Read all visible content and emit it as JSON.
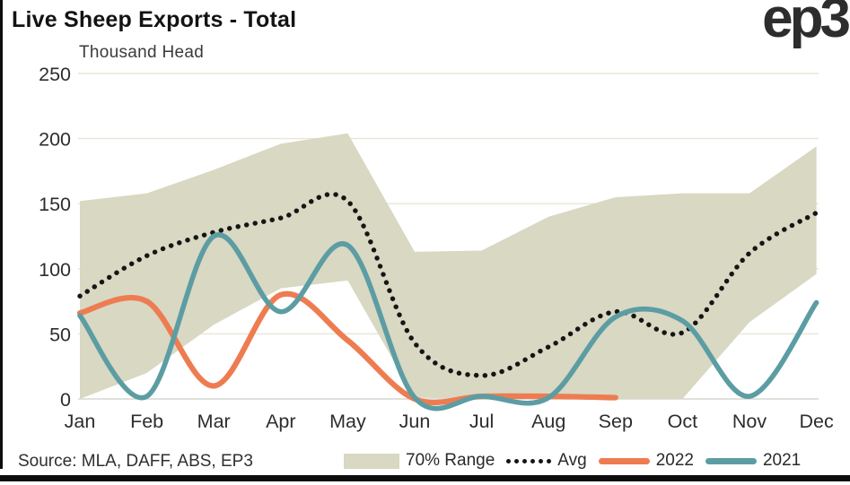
{
  "header": {
    "title": "Live Sheep Exports - Total",
    "logo": "ep3"
  },
  "chart": {
    "unit_label": "Thousand Head"
  },
  "footer": {
    "source": "Source: MLA, DAFF, ABS, EP3"
  },
  "legend": [
    {
      "label": "70% Range",
      "swatch": "band-swatch",
      "color": "#D8D8C3"
    },
    {
      "label": "Avg",
      "swatch": "dotted-swatch",
      "color": "#151515"
    },
    {
      "label": "2022",
      "swatch": "line-swatch",
      "color": "#EE7C51"
    },
    {
      "label": "2021",
      "swatch": "line-swatch",
      "color": "#5C9DA3"
    }
  ],
  "colors": {
    "band": "#D8D8C3",
    "avg": "#151515",
    "y2022": "#EE7C51",
    "y2021": "#5C9DA3",
    "gridline": "#e8e6d8",
    "axisline": "#d6d6d0",
    "tick_text": "#2d2d2d"
  },
  "chart_data": {
    "type": "line",
    "title": "Live Sheep Exports - Total",
    "ylabel": "Thousand Head",
    "xlabel": "",
    "categories": [
      "Jan",
      "Feb",
      "Mar",
      "Apr",
      "May",
      "Jun",
      "Jul",
      "Aug",
      "Sep",
      "Oct",
      "Nov",
      "Dec"
    ],
    "ylim": [
      0,
      250
    ],
    "yticks": [
      0,
      50,
      100,
      150,
      200,
      250
    ],
    "grid": "horizontal",
    "legend_position": "bottom",
    "series": [
      {
        "name": "70% Range",
        "type": "band",
        "color": "#D8D8C3",
        "upper": [
          152,
          158,
          176,
          196,
          204,
          113,
          114,
          140,
          155,
          158,
          158,
          194
        ],
        "lower": [
          0,
          20,
          57,
          85,
          91,
          1,
          0,
          0,
          0,
          0,
          59,
          96
        ]
      },
      {
        "name": "Avg",
        "type": "dotted-line",
        "color": "#151515",
        "values": [
          79,
          110,
          128,
          139,
          152,
          43,
          18,
          40,
          67,
          51,
          112,
          143
        ]
      },
      {
        "name": "2022",
        "type": "line",
        "color": "#EE7C51",
        "values": [
          66,
          75,
          10,
          80,
          45,
          0,
          2,
          2,
          1
        ]
      },
      {
        "name": "2021",
        "type": "line",
        "color": "#5C9DA3",
        "values": [
          64,
          2,
          125,
          67,
          118,
          1,
          2,
          1,
          63,
          60,
          2,
          74
        ]
      }
    ]
  }
}
